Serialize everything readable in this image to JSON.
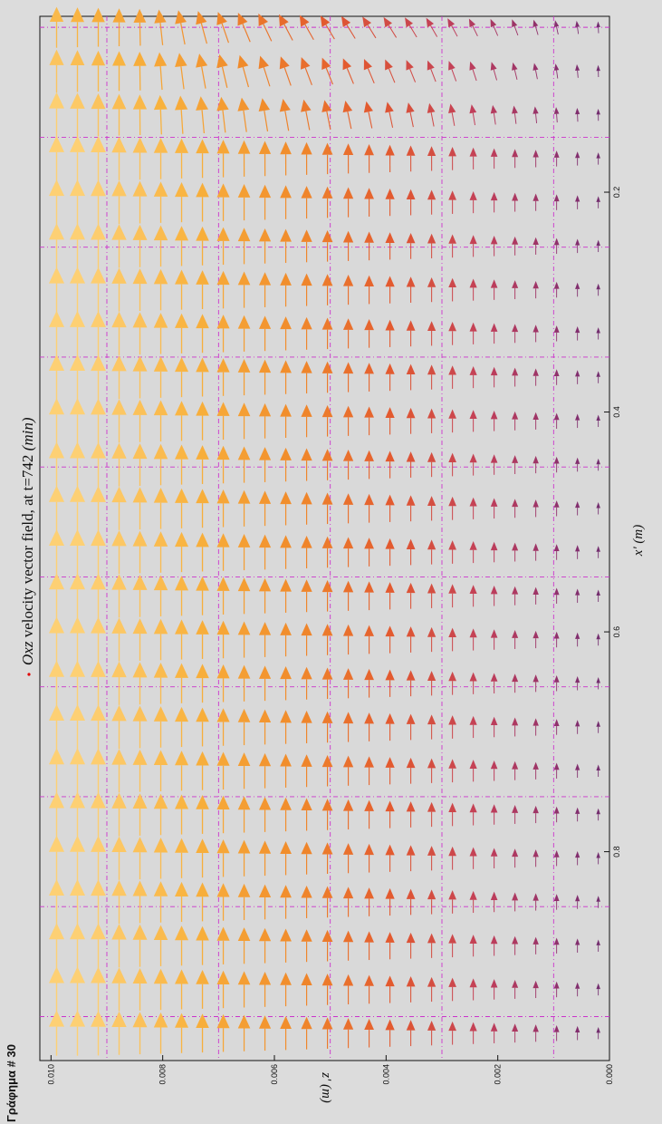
{
  "figure_label": "Γράφημα # 30",
  "chart_data": {
    "type": "quiver",
    "title_prefix": "Oxz",
    "title_main": " velocity vector field, at t=742 ",
    "title_unit": "(min)",
    "xlabel": "x' (m)",
    "ylabel": "z' (m)",
    "xlim": [
      0.04,
      0.99
    ],
    "ylim": [
      0.0,
      0.0102
    ],
    "x_ticks": [
      {
        "value": 0.2,
        "label": "0.2"
      },
      {
        "value": 0.4,
        "label": "0.4"
      },
      {
        "value": 0.6,
        "label": "0.6"
      },
      {
        "value": 0.8,
        "label": "0.8"
      }
    ],
    "y_ticks": [
      {
        "value": 0.01,
        "label": "0.010"
      },
      {
        "value": 0.008,
        "label": "0.008"
      },
      {
        "value": 0.006,
        "label": "0.006"
      },
      {
        "value": 0.004,
        "label": "0.004"
      },
      {
        "value": 0.002,
        "label": "0.002"
      },
      {
        "value": 0.0,
        "label": "0.000"
      }
    ],
    "grid_x": [
      0.05,
      0.15,
      0.25,
      0.35,
      0.45,
      0.55,
      0.65,
      0.75,
      0.85,
      0.95
    ],
    "grid_y": [
      0.001,
      0.003,
      0.005,
      0.007,
      0.009
    ],
    "grid": true,
    "colormap": [
      "#5a2a6e",
      "#8a2f6e",
      "#c13f5a",
      "#e2582f",
      "#f08a2a",
      "#f8b13c",
      "#fdd074"
    ],
    "grid_color": "#cc33cc",
    "vector_x_range": [
      0.05,
      0.965
    ],
    "vector_cols": 24,
    "vector_z_range": [
      0.0002,
      0.0099
    ],
    "vector_rows": 27
  }
}
